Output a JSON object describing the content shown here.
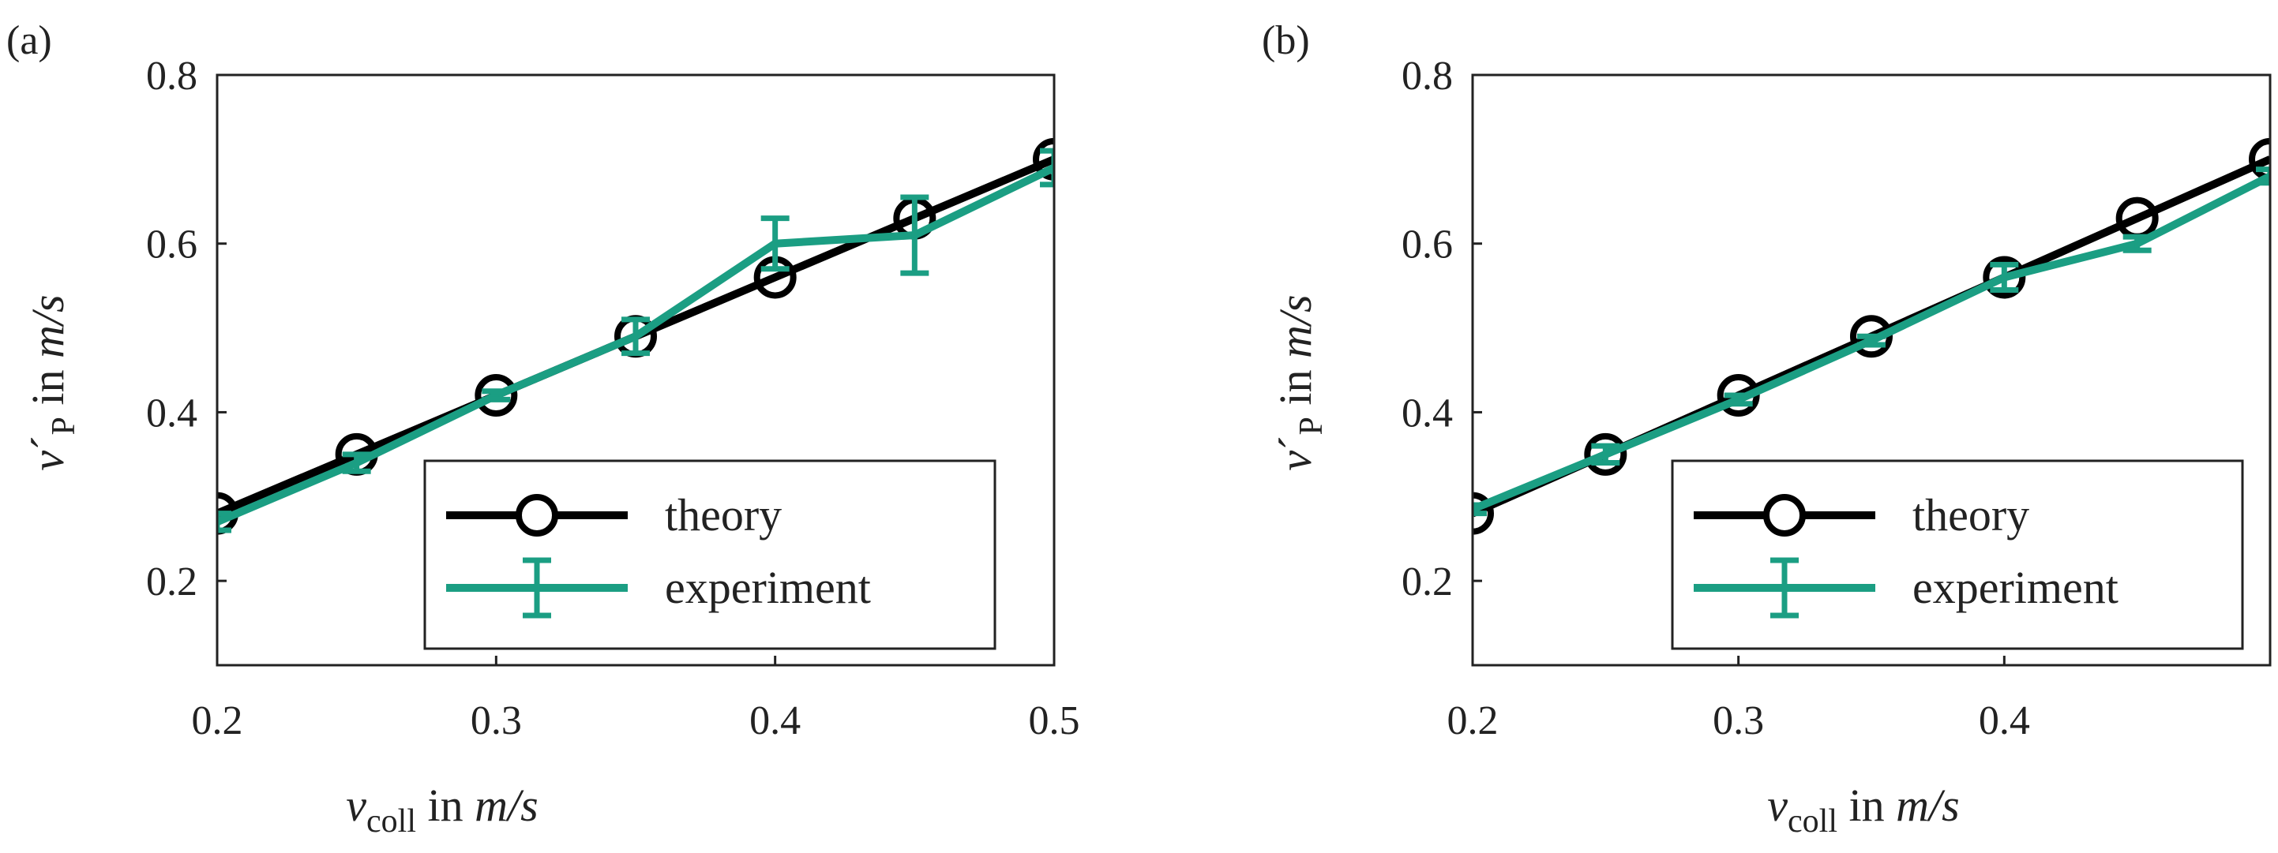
{
  "chart_data": [
    {
      "type": "line",
      "panel_label": "(a)",
      "xlim": [
        0.2,
        0.5
      ],
      "ylim": [
        0.1,
        0.8
      ],
      "xticks": [
        "0.2",
        "0.3",
        "0.4",
        "0.5"
      ],
      "yticks": [
        "0.2",
        "0.4",
        "0.6",
        "0.8"
      ],
      "xlabel": {
        "var": "v",
        "sub": "coll",
        "rest": " in ",
        "unit": "m/s"
      },
      "ylabel": {
        "var": "v",
        "prime": "´",
        "sub": "P",
        "rest": " in ",
        "unit": "m/s"
      },
      "legend_position": "bottom-right",
      "series": [
        {
          "name": "theory",
          "color": "#000000",
          "marker": "circle",
          "x": [
            0.2,
            0.25,
            0.3,
            0.35,
            0.4,
            0.45,
            0.5
          ],
          "y": [
            0.28,
            0.35,
            0.42,
            0.49,
            0.56,
            0.63,
            0.7
          ]
        },
        {
          "name": "experiment",
          "color": "#1b9e83",
          "marker": "errorbar",
          "x": [
            0.2,
            0.25,
            0.3,
            0.35,
            0.4,
            0.45,
            0.5
          ],
          "y": [
            0.27,
            0.34,
            0.42,
            0.49,
            0.6,
            0.61,
            0.69
          ],
          "err": [
            0.01,
            0.01,
            0.005,
            0.02,
            0.03,
            0.045,
            0.02
          ]
        }
      ]
    },
    {
      "type": "line",
      "panel_label": "(b)",
      "xlim": [
        0.2,
        0.5
      ],
      "ylim": [
        0.1,
        0.8
      ],
      "xticks": [
        "0.2",
        "0.3",
        "0.4"
      ],
      "yticks": [
        "0.2",
        "0.4",
        "0.6",
        "0.8"
      ],
      "xlabel": {
        "var": "v",
        "sub": "coll",
        "rest": " in ",
        "unit": "m/s"
      },
      "ylabel": {
        "var": "v",
        "prime": "´",
        "sub": "P",
        "rest": " in ",
        "unit": "m/s"
      },
      "legend_position": "bottom-right",
      "series": [
        {
          "name": "theory",
          "color": "#000000",
          "marker": "circle",
          "x": [
            0.2,
            0.25,
            0.3,
            0.35,
            0.4,
            0.45,
            0.5
          ],
          "y": [
            0.28,
            0.35,
            0.42,
            0.49,
            0.56,
            0.63,
            0.7
          ]
        },
        {
          "name": "experiment",
          "color": "#1b9e83",
          "marker": "errorbar",
          "x": [
            0.2,
            0.25,
            0.3,
            0.35,
            0.4,
            0.45,
            0.5
          ],
          "y": [
            0.285,
            0.35,
            0.415,
            0.485,
            0.56,
            0.6,
            0.68
          ],
          "err": [
            0.005,
            0.01,
            0.005,
            0.005,
            0.015,
            0.008,
            0.008
          ]
        }
      ]
    }
  ]
}
